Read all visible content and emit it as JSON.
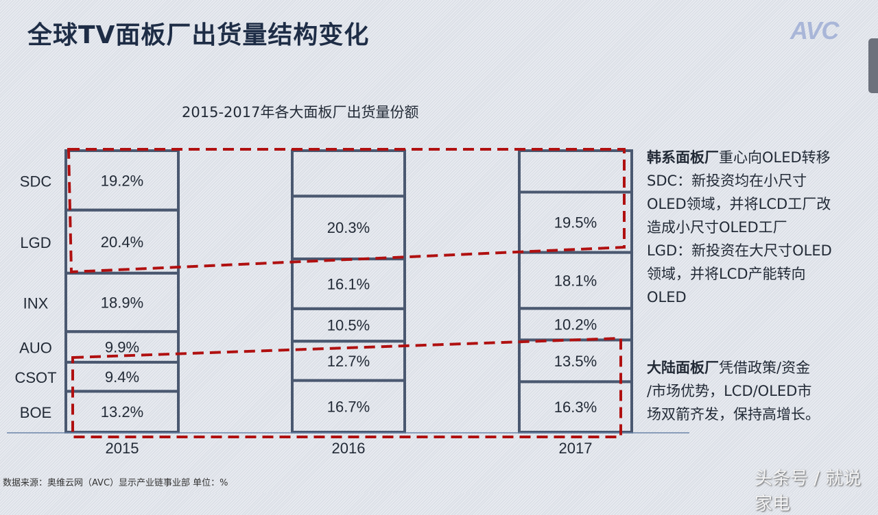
{
  "title": "全球TV面板厂出货量结构变化",
  "logo": "AVC",
  "chart_data": {
    "type": "bar",
    "stacked": true,
    "title": "2015-2017年各大面板厂出货量份额",
    "categories": [
      "2015",
      "2016",
      "2017"
    ],
    "series": [
      {
        "name": "BOE",
        "values": [
          13.2,
          16.7,
          16.3
        ]
      },
      {
        "name": "CSOT",
        "values": [
          9.4,
          12.7,
          13.5
        ]
      },
      {
        "name": "AUO",
        "values": [
          9.9,
          10.5,
          10.2
        ]
      },
      {
        "name": "INX",
        "values": [
          18.9,
          16.1,
          18.1
        ]
      },
      {
        "name": "LGD",
        "values": [
          20.4,
          20.3,
          19.5
        ]
      },
      {
        "name": "SDC",
        "values": [
          19.2,
          null,
          null
        ]
      }
    ],
    "value_suffix": "%",
    "colors": {
      "outline": "#4a5870",
      "highlight": "#b01010",
      "axis": "#6b84a8"
    }
  },
  "notes": {
    "korea": {
      "heading": "韩系面板厂",
      "lines": [
        "重心向OLED转移",
        "SDC：新投资均在小尺寸",
        "OLED领域，并将LCD工厂改",
        "造成小尺寸OLED工厂",
        "LGD：新投资在大尺寸OLED",
        "领域，并将LCD产能转向",
        "OLED"
      ]
    },
    "mainland": {
      "heading": "大陆面板厂",
      "lines": [
        "凭借政策/资金",
        "/市场优势，LCD/OLED市",
        "场双箭齐发，保持高增长。"
      ]
    }
  },
  "footer": "数据来源：奥维云网（AVC）显示产业链事业部 单位：%",
  "watermark": "头条号 / 就说家电"
}
